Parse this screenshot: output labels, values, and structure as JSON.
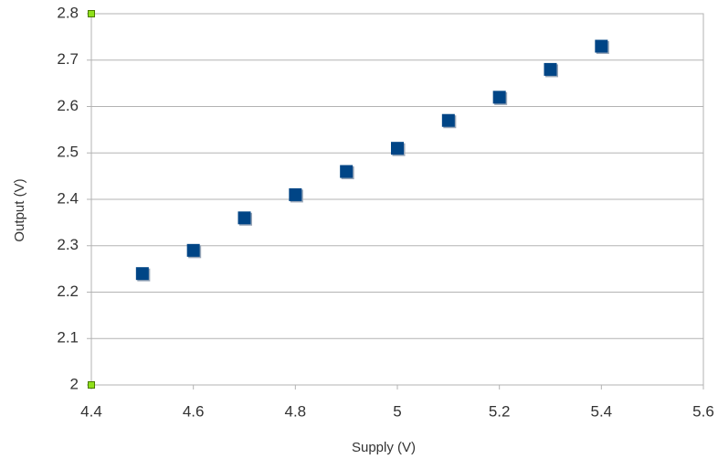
{
  "chart_data": {
    "type": "scatter",
    "x_label": "Supply (V)",
    "y_label": "Output (V)",
    "x": [
      4.5,
      4.6,
      4.7,
      4.8,
      4.9,
      5.0,
      5.1,
      5.2,
      5.3,
      5.4
    ],
    "series": [
      {
        "color": "#004586",
        "values": [
          2.24,
          2.29,
          2.36,
          2.41,
          2.46,
          2.51,
          2.57,
          2.62,
          2.68,
          2.73
        ]
      }
    ],
    "xlim": [
      4.4,
      5.6
    ],
    "xticks": [
      4.4,
      4.6,
      4.8,
      5,
      5.2,
      5.4,
      5.6
    ],
    "ylim": [
      2,
      2.8
    ],
    "yticks": [
      2,
      2.1,
      2.2,
      2.3,
      2.4,
      2.5,
      2.6,
      2.7,
      2.8
    ],
    "grid": true
  }
}
